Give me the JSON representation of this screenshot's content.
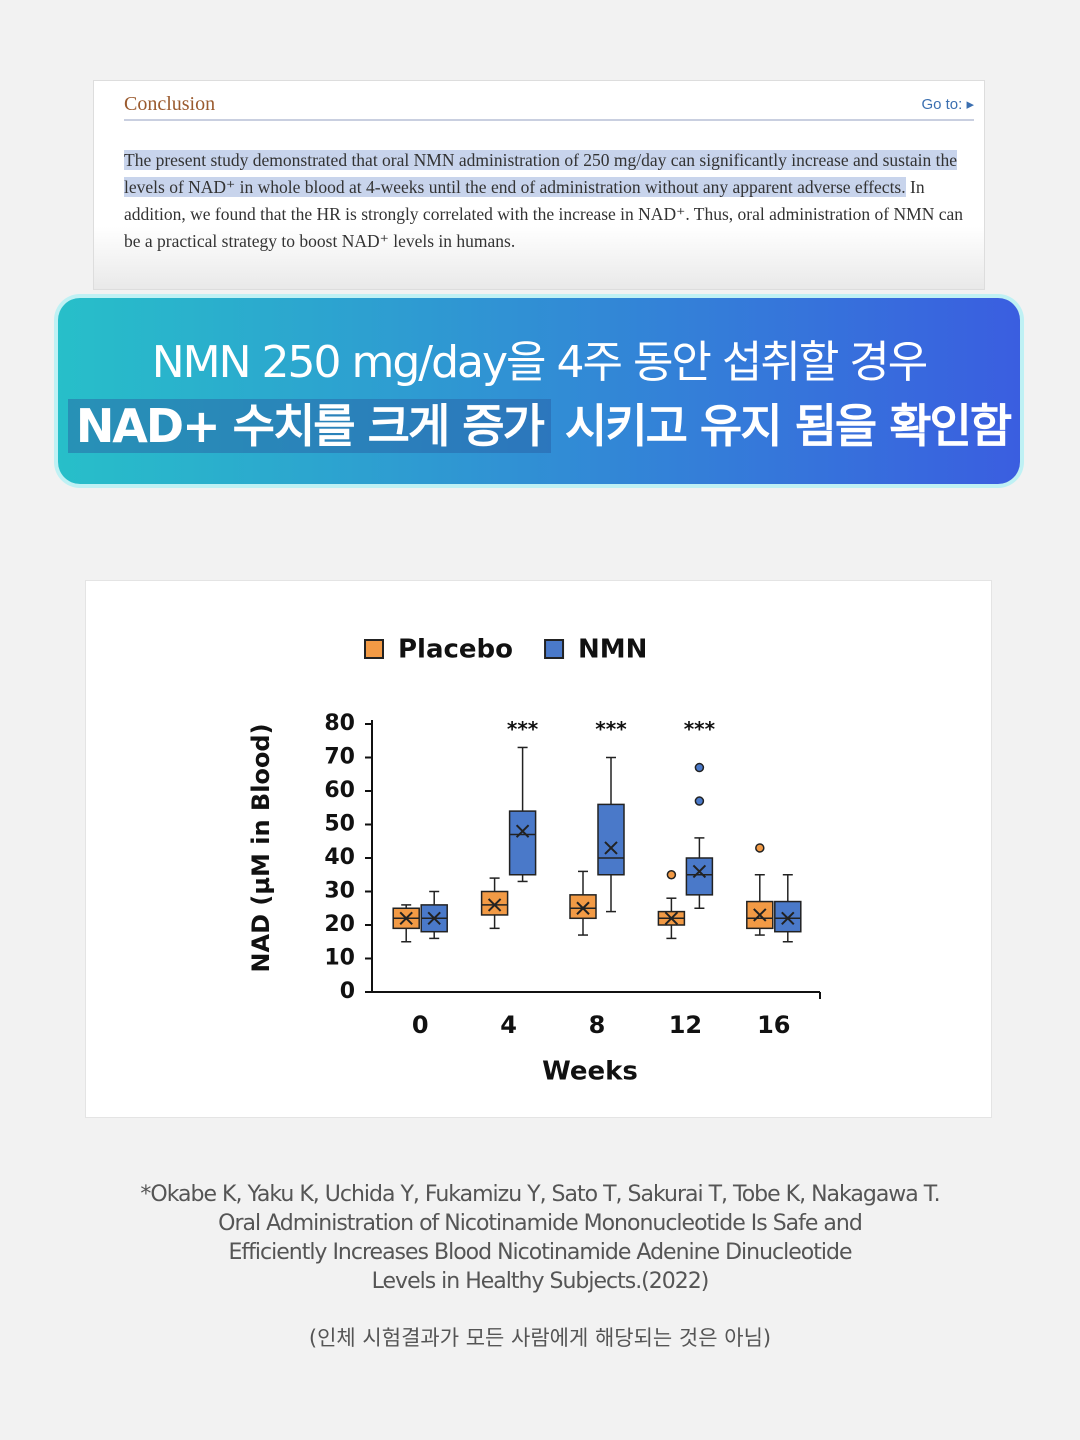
{
  "conclusion": {
    "heading": "Conclusion",
    "goto": "Go to:",
    "highlighted": "The present study demonstrated that oral NMN administration of 250 mg/day can significantly increase and sustain the levels of NAD⁺ in whole blood at 4-weeks until the end of administration without any apparent adverse effects.",
    "rest": " In addition, we found that the HR is strongly correlated with the increase in NAD⁺. Thus, oral administration of NMN can be a practical strategy to boost NAD⁺ levels in humans."
  },
  "banner": {
    "line1": "NMN 250 mg/day을 4주 동안 섭취할 경우",
    "line2_highlight": "NAD+ 수치를 크게 증가",
    "line2_rest": " 시키고 유지 됨을 확인함"
  },
  "chart_data": {
    "type": "box",
    "categories": [
      0,
      4,
      8,
      12,
      16
    ],
    "x_label": "Weeks",
    "y_label": "NAD (µM in Blood)",
    "ylim": [
      0,
      80
    ],
    "yticks": [
      0,
      10,
      20,
      30,
      40,
      50,
      60,
      70,
      80
    ],
    "annotations": [
      "",
      "***",
      "***",
      "***",
      ""
    ],
    "series": [
      {
        "name": "Placebo",
        "color": "#f29a45",
        "min": [
          15,
          19,
          17,
          16,
          17
        ],
        "q1": [
          19,
          23,
          22,
          20,
          19
        ],
        "median": [
          22,
          26,
          25,
          22,
          22
        ],
        "q3": [
          25,
          30,
          29,
          24,
          27
        ],
        "max": [
          26,
          34,
          36,
          28,
          35
        ],
        "mean": [
          22,
          26,
          25,
          22,
          23
        ],
        "outliers": [
          [],
          [],
          [],
          [
            35
          ],
          [
            43
          ]
        ]
      },
      {
        "name": "NMN",
        "color": "#4a79c9",
        "min": [
          16,
          33,
          24,
          25,
          15
        ],
        "q1": [
          18,
          35,
          35,
          29,
          18
        ],
        "median": [
          22,
          47,
          40,
          35,
          22
        ],
        "q3": [
          26,
          54,
          56,
          40,
          27
        ],
        "max": [
          30,
          73,
          70,
          46,
          35
        ],
        "mean": [
          22,
          48,
          43,
          36,
          22
        ],
        "outliers": [
          [],
          [],
          [],
          [
            57,
            67
          ],
          []
        ]
      }
    ]
  },
  "citation": {
    "lines": [
      "*Okabe K, Yaku K, Uchida Y, Fukamizu Y, Sato T, Sakurai T, Tobe K, Nakagawa T.",
      "Oral Administration of Nicotinamide Mononucleotide Is Safe and",
      "Efficiently Increases Blood Nicotinamide Adenine Dinucleotide",
      "Levels in Healthy Subjects.(2022)"
    ],
    "disclaimer": "(인체 시험결과가 모든 사람에게 해당되는 것은 아님)"
  }
}
